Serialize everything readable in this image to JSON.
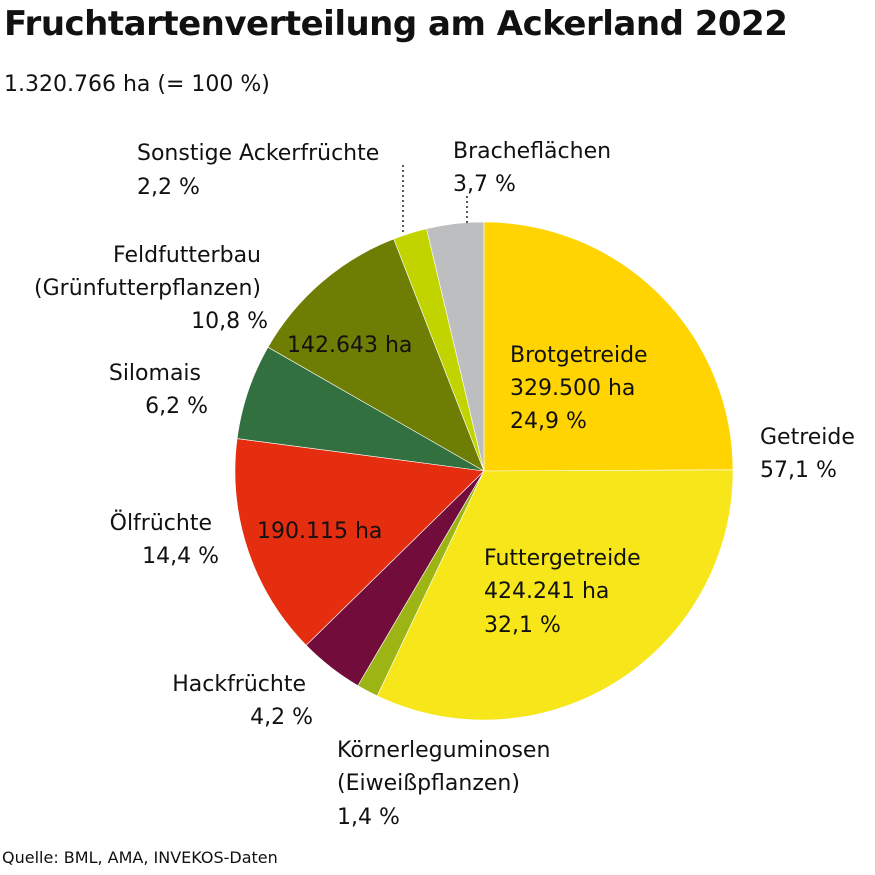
{
  "title": "Fruchtartenverteilung am Ackerland 2022",
  "subtitle": "1.320.766 ha (= 100 %)",
  "source": "Quelle: BML, AMA, INVEKOS-Daten",
  "chart_data": {
    "type": "pie",
    "title": "Fruchtartenverteilung am Ackerland 2022",
    "total": "1.320.766 ha (= 100 %)",
    "slices": [
      {
        "name": "Brotgetreide",
        "value": 24.9,
        "value_label": "24,9 %",
        "hectares": "329.500 ha",
        "color": "#FFD400"
      },
      {
        "name": "Futtergetreide",
        "value": 32.1,
        "value_label": "32,1 %",
        "hectares": "424.241 ha",
        "color": "#F6E61A"
      },
      {
        "name": "Körnerleguminosen (Eiweißpflanzen)",
        "value": 1.4,
        "value_label": "1,4 %",
        "color": "#9CB414"
      },
      {
        "name": "Hackfrüchte",
        "value": 4.2,
        "value_label": "4,2 %",
        "color": "#720C3A"
      },
      {
        "name": "Ölfrüchte",
        "value": 14.4,
        "value_label": "14,4 %",
        "hectares": "190.115 ha",
        "color": "#E52D0F"
      },
      {
        "name": "Silomais",
        "value": 6.2,
        "value_label": "6,2 %",
        "color": "#337040"
      },
      {
        "name": "Feldfutterbau (Grünfutterpflanzen)",
        "value": 10.8,
        "value_label": "10,8 %",
        "hectares": "142.643 ha",
        "color": "#6E7D03"
      },
      {
        "name": "Sonstige Ackerfrüchte",
        "value": 2.2,
        "value_label": "2,2 %",
        "color": "#C2D400"
      },
      {
        "name": "Bracheflächen",
        "value": 3.7,
        "value_label": "3,7 %",
        "color": "#BDBEC0"
      }
    ],
    "group_labels": [
      {
        "name": "Getreide",
        "value_label": "57,1 %",
        "members": [
          "Brotgetreide",
          "Futtergetreide"
        ]
      }
    ]
  },
  "labels": {
    "brot": [
      "Brotgetreide",
      "329.500 ha",
      "24,9 %"
    ],
    "futter": [
      "Futtergetreide",
      "424.241 ha",
      "32,1 %"
    ],
    "getreide": [
      "Getreide",
      "57,1 %"
    ],
    "koerner": [
      "Körnerleguminosen",
      "(Eiweißpflanzen)",
      "1,4 %"
    ],
    "hack": [
      "Hackfrüchte",
      "4,2 %"
    ],
    "oel": [
      "Ölfrüchte",
      "14,4 %"
    ],
    "oel_ha": "190.115 ha",
    "silo": [
      "Silomais",
      "6,2 %"
    ],
    "feld": [
      "Feldfutterbau",
      "(Grünfutterpflanzen)",
      "10,8 %"
    ],
    "feld_ha": "142.643 ha",
    "sonst": [
      "Sonstige Ackerfrüchte",
      "2,2 %"
    ],
    "brache": [
      "Bracheflächen",
      "3,7 %"
    ]
  }
}
